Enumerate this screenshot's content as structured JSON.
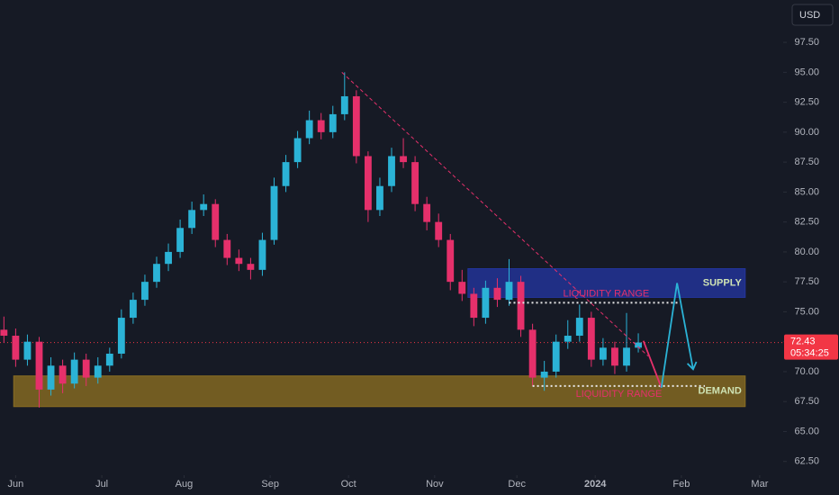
{
  "chart_data": {
    "type": "candlestick",
    "currency": "USD",
    "up_color": "#2bb3d6",
    "down_color": "#e5306b",
    "xlim": [
      -4,
      196
    ],
    "ylim": [
      61.35,
      101.04
    ],
    "xticks": [
      {
        "value": 0,
        "label": "Jun"
      },
      {
        "value": 22,
        "label": "Jul"
      },
      {
        "value": 43,
        "label": "Aug"
      },
      {
        "value": 65,
        "label": "Sep"
      },
      {
        "value": 85,
        "label": "Oct"
      },
      {
        "value": 107,
        "label": "Nov"
      },
      {
        "value": 128,
        "label": "Dec"
      },
      {
        "value": 148,
        "label": "2024"
      },
      {
        "value": 170,
        "label": "Feb"
      },
      {
        "value": 190,
        "label": "Mar"
      }
    ],
    "yticks": [
      {
        "value": 62.5,
        "label": "62.50"
      },
      {
        "value": 65,
        "label": "65.00"
      },
      {
        "value": 67.5,
        "label": "67.50"
      },
      {
        "value": 70,
        "label": "70.00"
      },
      {
        "value": 72.5,
        "label": "72.50"
      },
      {
        "value": 75,
        "label": "75.00"
      },
      {
        "value": 77.5,
        "label": "77.50"
      },
      {
        "value": 80,
        "label": "80.00"
      },
      {
        "value": 82.5,
        "label": "82.50"
      },
      {
        "value": 85,
        "label": "85.00"
      },
      {
        "value": 87.5,
        "label": "87.50"
      },
      {
        "value": 90,
        "label": "90.00"
      },
      {
        "value": 92.5,
        "label": "92.50"
      },
      {
        "value": 95,
        "label": "95.00"
      },
      {
        "value": 97.5,
        "label": "97.50"
      }
    ],
    "x": [
      -3,
      0,
      3,
      6,
      9,
      12,
      15,
      18,
      21,
      24,
      27,
      30,
      33,
      36,
      39,
      42,
      45,
      48,
      51,
      54,
      57,
      60,
      63,
      66,
      69,
      72,
      75,
      78,
      81,
      84,
      87,
      90,
      93,
      96,
      99,
      102,
      105,
      108,
      111,
      114,
      117,
      120,
      123,
      126,
      129,
      132,
      135,
      138,
      141,
      144,
      147,
      150,
      153,
      156,
      159
    ],
    "open": [
      73.5,
      73.0,
      71.0,
      72.5,
      68.5,
      70.5,
      69.0,
      71.0,
      69.5,
      70.5,
      71.5,
      74.5,
      76.0,
      77.5,
      79.0,
      80.0,
      82.0,
      83.5,
      84.0,
      81.0,
      79.5,
      79.0,
      78.5,
      81.0,
      85.5,
      87.5,
      89.5,
      91.0,
      90.0,
      91.5,
      93.0,
      88.0,
      83.5,
      85.5,
      88.0,
      87.5,
      84.0,
      82.5,
      81.0,
      77.5,
      76.5,
      74.5,
      77.0,
      76.0,
      77.5,
      73.5,
      69.5,
      70.0,
      72.5,
      73.0,
      74.5,
      71.0,
      72.0,
      70.5,
      72.0
    ],
    "high": [
      74.6,
      73.6,
      73.1,
      72.9,
      71.2,
      71.0,
      71.6,
      71.5,
      71.2,
      72.0,
      75.2,
      76.6,
      78.1,
      79.6,
      80.7,
      82.7,
      84.2,
      84.8,
      84.4,
      81.5,
      80.2,
      79.5,
      81.6,
      86.2,
      88.1,
      90.1,
      91.8,
      91.6,
      92.2,
      95.0,
      93.5,
      88.4,
      86.2,
      88.7,
      89.5,
      88.0,
      84.6,
      83.2,
      81.5,
      78.5,
      77.0,
      77.6,
      77.8,
      79.4,
      78.0,
      74.0,
      70.9,
      73.1,
      74.3,
      75.6,
      75.0,
      72.8,
      72.5,
      74.9,
      73.2
    ],
    "low": [
      72.4,
      70.4,
      70.5,
      67.0,
      68.0,
      68.2,
      68.6,
      68.8,
      69.0,
      70.0,
      71.1,
      74.0,
      75.5,
      77.0,
      78.4,
      79.5,
      81.5,
      83.0,
      80.4,
      78.9,
      78.4,
      77.7,
      78.0,
      80.6,
      85.0,
      87.0,
      89.0,
      89.4,
      89.5,
      91.0,
      87.4,
      82.5,
      83.0,
      85.0,
      87.0,
      83.4,
      81.8,
      80.4,
      76.8,
      75.9,
      73.8,
      74.0,
      75.4,
      75.5,
      72.9,
      68.8,
      68.4,
      69.5,
      71.9,
      72.5,
      70.4,
      70.5,
      69.8,
      70.0,
      71.6
    ],
    "close": [
      73.0,
      71.0,
      72.5,
      68.5,
      70.5,
      69.0,
      71.0,
      69.5,
      70.5,
      71.5,
      74.5,
      76.0,
      77.5,
      79.0,
      80.0,
      82.0,
      83.5,
      84.0,
      81.0,
      79.5,
      79.0,
      78.5,
      81.0,
      85.5,
      87.5,
      89.5,
      91.0,
      90.0,
      91.5,
      93.0,
      88.0,
      83.5,
      85.5,
      88.0,
      87.5,
      84.0,
      82.5,
      81.0,
      77.5,
      76.5,
      74.5,
      77.0,
      76.0,
      77.5,
      73.5,
      69.5,
      70.0,
      72.5,
      73.0,
      74.5,
      71.0,
      72.0,
      70.5,
      72.0,
      72.43
    ],
    "last_price": 72.43,
    "last_price_color": "#f23645",
    "countdown": "05:34:25",
    "zones": [
      {
        "label": "SUPPLY",
        "x": [
          115.5,
          186.3
        ],
        "y": [
          76.2,
          78.6
        ],
        "color": "#23359e"
      },
      {
        "label": "DEMAND",
        "x": [
          -0.5,
          186.3
        ],
        "y": [
          67.08,
          69.64
        ],
        "color": "#8a6d22"
      }
    ],
    "levels": [
      {
        "label": "LIQUIDITY RANGE",
        "x": [
          126,
          170
        ],
        "y": 75.75
      },
      {
        "label": "LIQUIDITY RANGE",
        "x": [
          132,
          176
        ],
        "y": 68.8
      }
    ],
    "lines": [
      {
        "x": [
          83.3,
          161.5
        ],
        "y": [
          95.0,
          71.3
        ],
        "color": "#e5306b",
        "dashed": true
      },
      {
        "x": [
          160.3,
          164.9
        ],
        "y": [
          72.57,
          68.66
        ],
        "color": "#e5306b",
        "dashed": false
      },
      {
        "x": [
          164.9,
          168.9,
          173
        ],
        "y": [
          68.66,
          77.4,
          70.2
        ],
        "color": "#2bb3d6",
        "dashed": false
      }
    ]
  }
}
